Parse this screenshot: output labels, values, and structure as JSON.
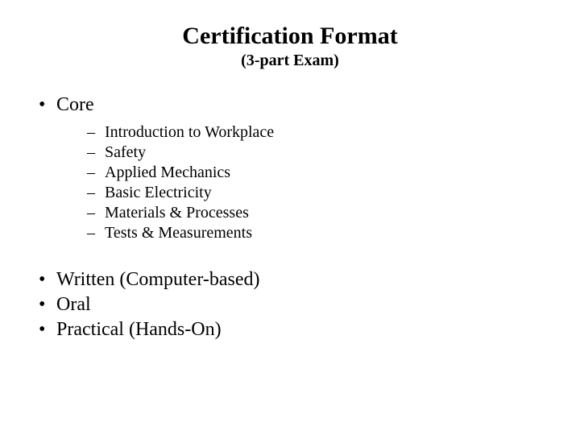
{
  "title": "Certification Format",
  "subtitle": "(3-part Exam)",
  "core_heading": "Core",
  "core_items": [
    "Introduction to Workplace",
    "Safety",
    "Applied Mechanics",
    "Basic Electricity",
    "Materials & Processes",
    "Tests & Measurements"
  ],
  "format_items": [
    "Written (Computer-based)",
    "Oral",
    "Practical (Hands-On)"
  ],
  "colors": {
    "background": "#ffffff",
    "text": "#000000"
  },
  "typography": {
    "family": "Times New Roman",
    "title_size_pt": 30,
    "subtitle_size_pt": 20,
    "l1_size_pt": 24,
    "l2_size_pt": 20
  }
}
